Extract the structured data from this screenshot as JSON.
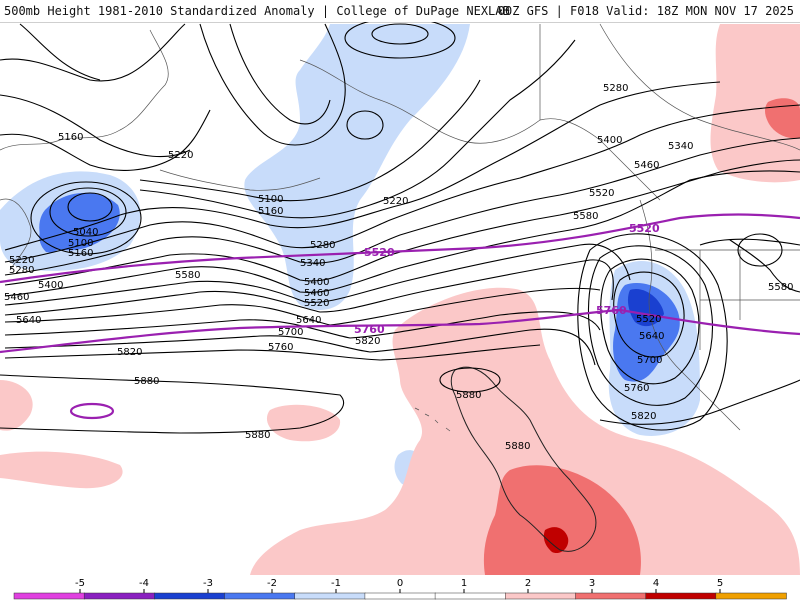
{
  "header": {
    "left_title": "500mb Height 1981-2010 Standardized Anomaly | College of DuPage NEXLAB",
    "right_title": "00Z GFS | F018 Valid: 18Z MON NOV 17 2025"
  },
  "map": {
    "contour_labels": {
      "c5160_nw": "5160",
      "c5220_nw": "5220",
      "c5040_low": "5040",
      "c5100_low": "5100",
      "c5160_low": "5160",
      "c5220_w": "5220",
      "c5280_w": "5280",
      "c5400_w": "5400",
      "c5460_w": "5460",
      "c5640_w": "5640",
      "c5580_mid": "5580",
      "c5100_mid": "5100",
      "c5160_mid": "5160",
      "c5220_mid": "5220",
      "c5280_mid": "5280",
      "c5340_mid": "5340",
      "c5400_mid": "5400",
      "c5460_mid": "5460",
      "c5520_mid": "5520",
      "c5640_mid": "5640",
      "c5700_mid": "5700",
      "c5760_mid": "5760",
      "c5820_mid": "5820",
      "c5820_w": "5820",
      "c5880_w": "5880",
      "c5880_s": "5880",
      "c5880_hi": "5880",
      "c5880_hi2": "5880",
      "c5280_ne": "5280",
      "c5340_ne": "5340",
      "c5400_ne": "5400",
      "c5460_ne": "5460",
      "c5520_ne": "5520",
      "c5580_ne": "5580",
      "c5580_e": "5580",
      "c5520_e": "5520",
      "c5640_e": "5640",
      "c5700_e": "5700",
      "c5760_e": "5760",
      "c5820_e": "5820"
    },
    "climo_labels": {
      "c5520_purple": "5520",
      "c5760_purple": "5760",
      "c5520_purple_e": "5520",
      "c5760_purple_e": "5760"
    }
  },
  "legend": {
    "ticks": [
      "-5",
      "-4",
      "-3",
      "-2",
      "-1",
      "0",
      "1",
      "2",
      "3",
      "4",
      "5"
    ],
    "colors": [
      "#e040e0",
      "#8a20c0",
      "#1a40d0",
      "#4a78f0",
      "#c8dcfa",
      "#ffffff",
      "#ffffff",
      "#fbc8c8",
      "#f07070",
      "#c00000",
      "#f0a000"
    ]
  },
  "colors": {
    "contour": "#000000",
    "climo": "#9a20b0",
    "land_outline": "#555555"
  }
}
